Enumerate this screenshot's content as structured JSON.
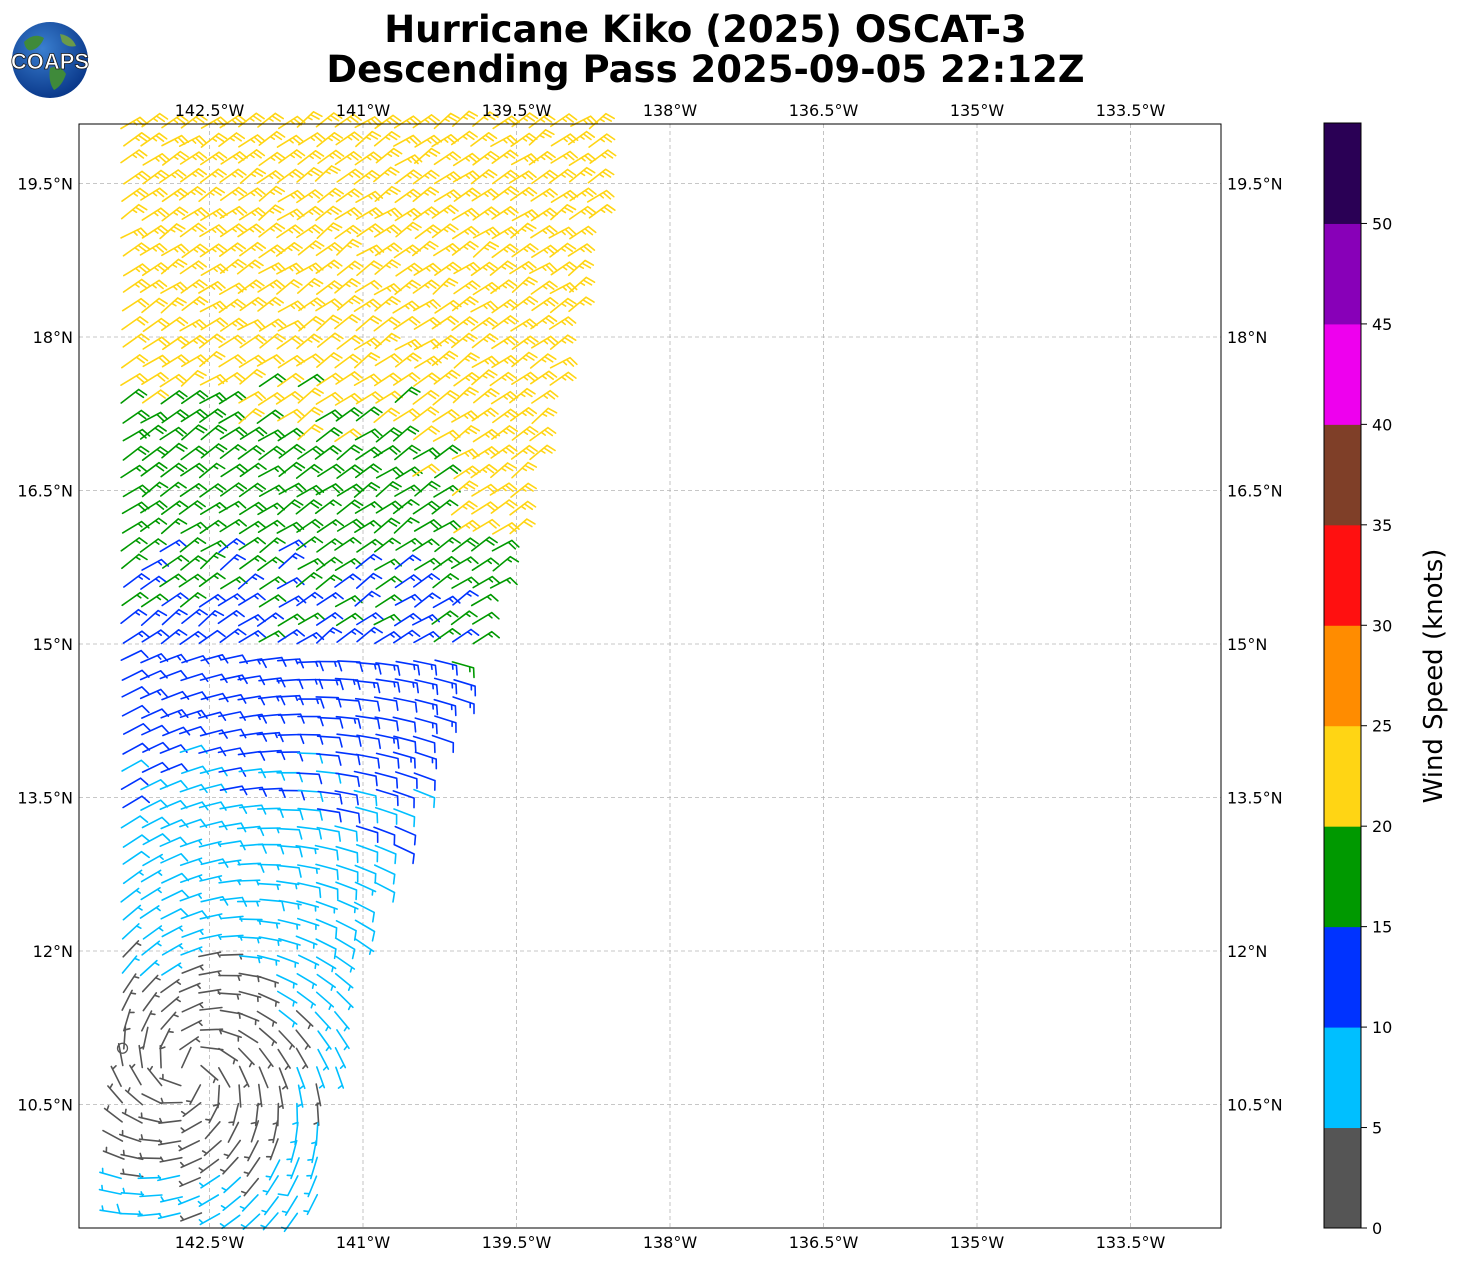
{
  "title": {
    "line1": "Hurricane Kiko (2025) OSCAT-3",
    "line2": "Descending Pass 2025-09-05 22:12Z"
  },
  "logo": {
    "text": "COAPS"
  },
  "map": {
    "lon_range": [
      -143.4,
      -134.9
    ],
    "lat_range": [
      9.2,
      20.1
    ],
    "lon_ticks": [
      -142.5,
      -141,
      -139.5,
      -138,
      -136.5,
      -135,
      -133.5
    ],
    "lon_labels": [
      "142.5°W",
      "141°W",
      "139.5°W",
      "138°W",
      "136.5°W",
      "135°W",
      "133.5°W"
    ],
    "lat_ticks": [
      19.5,
      18,
      16.5,
      15,
      13.5,
      12,
      10.5
    ],
    "lat_labels": [
      "19.5°N",
      "18°N",
      "16.5°N",
      "15°N",
      "13.5°N",
      "12°N",
      "10.5°N"
    ],
    "swath_east_edge": [
      [
        20.1,
        -138.6
      ],
      [
        18.0,
        -139.0
      ],
      [
        16.5,
        -139.4
      ],
      [
        15.0,
        -139.9
      ],
      [
        13.5,
        -140.5
      ],
      [
        12.0,
        -141.1
      ],
      [
        10.5,
        -141.3
      ],
      [
        9.2,
        -141.5
      ]
    ],
    "wind_field": {
      "center_lat": 10.8,
      "center_lon": -142.7,
      "description_color_bins_knots": [
        0,
        5,
        10,
        15,
        20,
        25
      ]
    },
    "legend_colors": {
      "0-5": "#555555",
      "5-10": "#00bfff",
      "10-15": "#0033ff",
      "15-20": "#009900",
      "20-25": "#ffd700"
    }
  },
  "colorbar": {
    "label": "Wind Speed (knots)",
    "ticks": [
      "0",
      "5",
      "10",
      "15",
      "20",
      "25",
      "30",
      "35",
      "40",
      "45",
      "50"
    ],
    "colors": [
      "#555555",
      "#00bfff",
      "#0033ff",
      "#009900",
      "#ffd514",
      "#ff8c00",
      "#ff1010",
      "#7f3f28",
      "#ee00ee",
      "#8800b8",
      "#2a0055"
    ]
  }
}
